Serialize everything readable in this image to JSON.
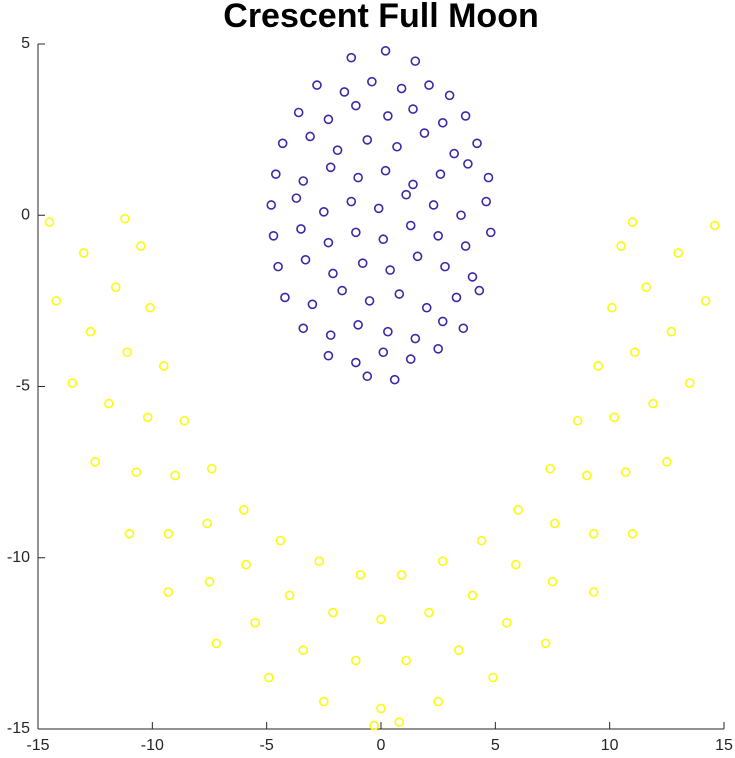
{
  "chart_data": {
    "type": "scatter",
    "title": "Crescent Full Moon",
    "xlim": [
      -15,
      15
    ],
    "xticks": [
      -15,
      -10,
      -5,
      0,
      5,
      10,
      15
    ],
    "ylim": [
      -15,
      5
    ],
    "yticks": [
      -15,
      -10,
      -5,
      0,
      5
    ],
    "series": [
      {
        "color": "#3e26a8",
        "x": [
          -1.3,
          0.2,
          1.5,
          -2.8,
          -1.6,
          -0.4,
          0.9,
          2.1,
          3.0,
          -3.6,
          -2.3,
          -1.1,
          0.3,
          1.4,
          2.7,
          3.7,
          -4.3,
          -3.1,
          -1.9,
          -0.6,
          0.7,
          1.9,
          3.2,
          4.2,
          -4.6,
          -3.4,
          -2.2,
          -1.0,
          0.2,
          1.4,
          2.6,
          3.8,
          4.7,
          -4.8,
          -3.7,
          -2.5,
          -1.3,
          -0.1,
          1.1,
          2.3,
          3.5,
          4.6,
          -4.7,
          -3.5,
          -2.3,
          -1.1,
          0.1,
          1.3,
          2.5,
          3.7,
          4.8,
          -4.5,
          -3.3,
          -2.1,
          -0.8,
          0.4,
          1.6,
          2.8,
          4.0,
          -4.2,
          -3.0,
          -1.7,
          -0.5,
          0.8,
          2.0,
          3.3,
          4.3,
          -3.4,
          -2.2,
          -1.0,
          0.3,
          1.5,
          2.7,
          3.6,
          -2.3,
          -1.1,
          0.1,
          1.3,
          2.5,
          -0.6,
          0.6
        ],
        "values": [
          4.6,
          4.8,
          4.5,
          3.8,
          3.6,
          3.9,
          3.7,
          3.8,
          3.5,
          3.0,
          2.8,
          3.2,
          2.9,
          3.1,
          2.7,
          2.9,
          2.1,
          2.3,
          1.9,
          2.2,
          2.0,
          2.4,
          1.8,
          2.1,
          1.2,
          1.0,
          1.4,
          1.1,
          1.3,
          0.9,
          1.2,
          1.5,
          1.1,
          0.3,
          0.5,
          0.1,
          0.4,
          0.2,
          0.6,
          0.3,
          0.0,
          0.4,
          -0.6,
          -0.4,
          -0.8,
          -0.5,
          -0.7,
          -0.3,
          -0.6,
          -0.9,
          -0.5,
          -1.5,
          -1.3,
          -1.7,
          -1.4,
          -1.6,
          -1.2,
          -1.5,
          -1.8,
          -2.4,
          -2.6,
          -2.2,
          -2.5,
          -2.3,
          -2.7,
          -2.4,
          -2.2,
          -3.3,
          -3.5,
          -3.2,
          -3.4,
          -3.6,
          -3.1,
          -3.3,
          -4.1,
          -4.3,
          -4.0,
          -4.2,
          -3.9,
          -4.7,
          -4.8
        ]
      },
      {
        "color": "#f9fb0e",
        "x": [
          -10.5,
          -10.1,
          -9.5,
          -8.6,
          -7.4,
          -6.0,
          -4.4,
          -2.7,
          -0.9,
          0.9,
          2.7,
          4.4,
          6.0,
          7.4,
          8.6,
          9.5,
          10.1,
          10.5,
          -13.0,
          -12.7,
          -11.9,
          -10.7,
          -9.3,
          -7.5,
          -5.5,
          -3.4,
          -1.1,
          1.1,
          3.4,
          5.5,
          7.5,
          9.3,
          10.7,
          11.9,
          12.7,
          13.0,
          -11.6,
          -11.1,
          -10.2,
          -9.0,
          -7.6,
          -5.9,
          -4.0,
          -2.1,
          0,
          2.1,
          4.0,
          5.9,
          7.6,
          9.0,
          10.2,
          11.1,
          11.6,
          -14.2,
          -13.5,
          -12.5,
          -11.0,
          -9.3,
          -7.2,
          -4.9,
          -2.5,
          0,
          2.5,
          4.9,
          7.2,
          9.3,
          11.0,
          12.5,
          13.5,
          14.2,
          -14.5,
          -11.2,
          14.6,
          11.0,
          -0.3,
          0.8
        ],
        "values": [
          -0.9,
          -2.7,
          -4.4,
          -6.0,
          -7.4,
          -8.6,
          -9.5,
          -10.1,
          -10.5,
          -10.5,
          -10.1,
          -9.5,
          -8.6,
          -7.4,
          -6.0,
          -4.4,
          -2.7,
          -0.9,
          -1.1,
          -3.4,
          -5.5,
          -7.5,
          -9.3,
          -10.7,
          -11.9,
          -12.7,
          -13.0,
          -13.0,
          -12.7,
          -11.9,
          -10.7,
          -9.3,
          -7.5,
          -5.5,
          -3.4,
          -1.1,
          -2.1,
          -4.0,
          -5.9,
          -7.6,
          -9.0,
          -10.2,
          -11.1,
          -11.6,
          -11.8,
          -11.6,
          -11.1,
          -10.2,
          -9.0,
          -7.6,
          -5.9,
          -4.0,
          -2.1,
          -2.5,
          -4.9,
          -7.2,
          -9.3,
          -11.0,
          -12.5,
          -13.5,
          -14.2,
          -14.4,
          -14.2,
          -13.5,
          -12.5,
          -11.0,
          -9.3,
          -7.2,
          -4.9,
          -2.5,
          -0.2,
          -0.1,
          -0.3,
          -0.2,
          -14.9,
          -14.8
        ]
      }
    ]
  }
}
